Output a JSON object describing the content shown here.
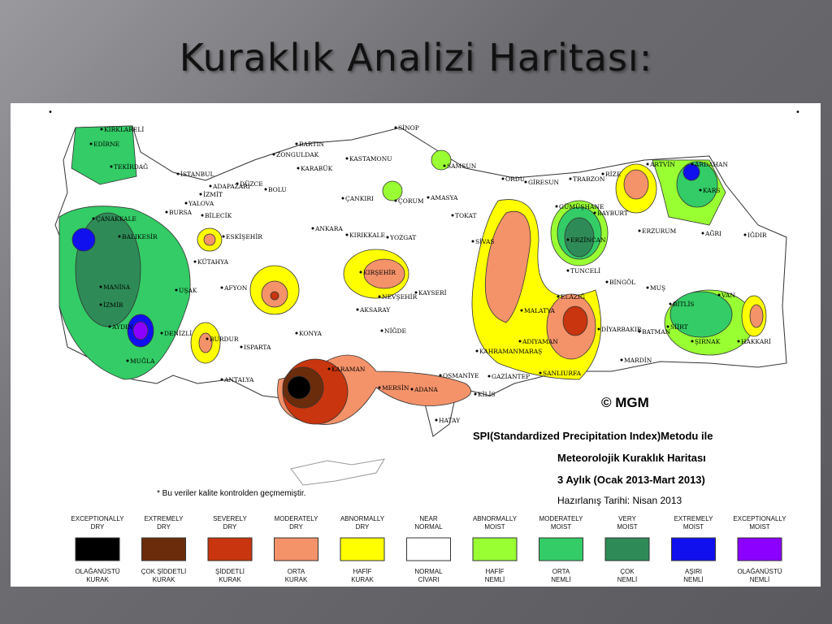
{
  "title": "Kuraklık Analizi Haritası:",
  "map": {
    "credit": "© MGM",
    "heading": [
      "SPI(Standardized Precipitation Index)Metodu ile",
      "Meteorolojik Kuraklık Haritası",
      "3 Aylık (Ocak 2013-Mart 2013)"
    ],
    "date": "Hazırlanış Tarihi: Nisan 2013",
    "note": "* Bu veriler kalite kontrolden geçmemiştir.",
    "cities": [
      "KIRKLARELİ",
      "EDİRNE",
      "TEKİRDAĞ",
      "İSTANBUL",
      "ADAPAZARI",
      "İZMİT",
      "DÜZCE",
      "BOLU",
      "YALOVA",
      "BURSA",
      "BİLECİK",
      "ESKİŞEHİR",
      "ÇANAKKALE",
      "BALIKESİR",
      "KÜTAHYA",
      "MANİSA",
      "İZMİR",
      "UŞAK",
      "AFYON",
      "AYDIN",
      "DENİZLİ",
      "MUĞLA",
      "BURDUR",
      "ISPARTA",
      "ANTALYA",
      "KONYA",
      "KARAMAN",
      "MERSİN",
      "ADANA",
      "OSMANİYE",
      "GAZİANTEP",
      "KİLİS",
      "HATAY",
      "ŞANLIURFA",
      "KAHRAMANMARAŞ",
      "ADIYAMAN",
      "MALATYA",
      "DİYARBAKIR",
      "ELAZIĞ",
      "TUNCELİ",
      "BİNGÖL",
      "MUŞ",
      "BİTLİS",
      "BATMAN",
      "SİİRT",
      "MARDİN",
      "ŞIRNAK",
      "HAKKARİ",
      "VAN",
      "AĞRI",
      "IĞDIR",
      "KARS",
      "ARDAHAN",
      "ARTVİN",
      "RİZE",
      "TRABZON",
      "GÜMÜŞHANE",
      "BAYBURT",
      "ERZİNCAN",
      "ERZURUM",
      "GİRESUN",
      "ORDU",
      "SAMSUN",
      "SİNOP",
      "KASTAMONU",
      "BARTIN",
      "ZONGULDAK",
      "KARABÜK",
      "ÇANKIRI",
      "ÇORUM",
      "AMASYA",
      "TOKAT",
      "SİVAS",
      "YOZGAT",
      "KIRIKKALE",
      "ANKARA",
      "KIRŞEHİR",
      "NEVŞEHİR",
      "KAYSERİ",
      "AKSARAY",
      "NİĞDE"
    ]
  },
  "legend": [
    {
      "en": [
        "EXCEPTIONALLY",
        "DRY"
      ],
      "tr": [
        "OLAĞANÜSTÜ",
        "KURAK"
      ],
      "color": "#000000"
    },
    {
      "en": [
        "EXTREMELY",
        "DRY"
      ],
      "tr": [
        "ÇOK ŞİDDETLİ",
        "KURAK"
      ],
      "color": "#6b2c0c"
    },
    {
      "en": [
        "SEVERELY",
        "DRY"
      ],
      "tr": [
        "ŞİDDETLİ",
        "KURAK"
      ],
      "color": "#c8350e"
    },
    {
      "en": [
        "MODERATELY",
        "DRY"
      ],
      "tr": [
        "ORTA",
        "KURAK"
      ],
      "color": "#f4926a"
    },
    {
      "en": [
        "ABNORMALLY",
        "DRY"
      ],
      "tr": [
        "HAFİF",
        "KURAK"
      ],
      "color": "#ffff00"
    },
    {
      "en": [
        "NEAR",
        "NORMAL"
      ],
      "tr": [
        "NORMAL",
        "CİVARI"
      ],
      "color": "#ffffff"
    },
    {
      "en": [
        "ABNORMALLY",
        "MOIST"
      ],
      "tr": [
        "HAFİF",
        "NEMLİ"
      ],
      "color": "#99ff33"
    },
    {
      "en": [
        "MODERATELY",
        "MOIST"
      ],
      "tr": [
        "ORTA",
        "NEMLİ"
      ],
      "color": "#33cc66"
    },
    {
      "en": [
        "VERY",
        "MOIST"
      ],
      "tr": [
        "ÇOK",
        "NEMLİ"
      ],
      "color": "#2e8b57"
    },
    {
      "en": [
        "EXTREMELY",
        "MOIST"
      ],
      "tr": [
        "AŞIRI",
        "NEMLİ"
      ],
      "color": "#1010ee"
    },
    {
      "en": [
        "EXCEPTIONALLY",
        "MOIST"
      ],
      "tr": [
        "OLAĞANÜSTÜ",
        "NEMLİ"
      ],
      "color": "#8b00ff"
    }
  ]
}
